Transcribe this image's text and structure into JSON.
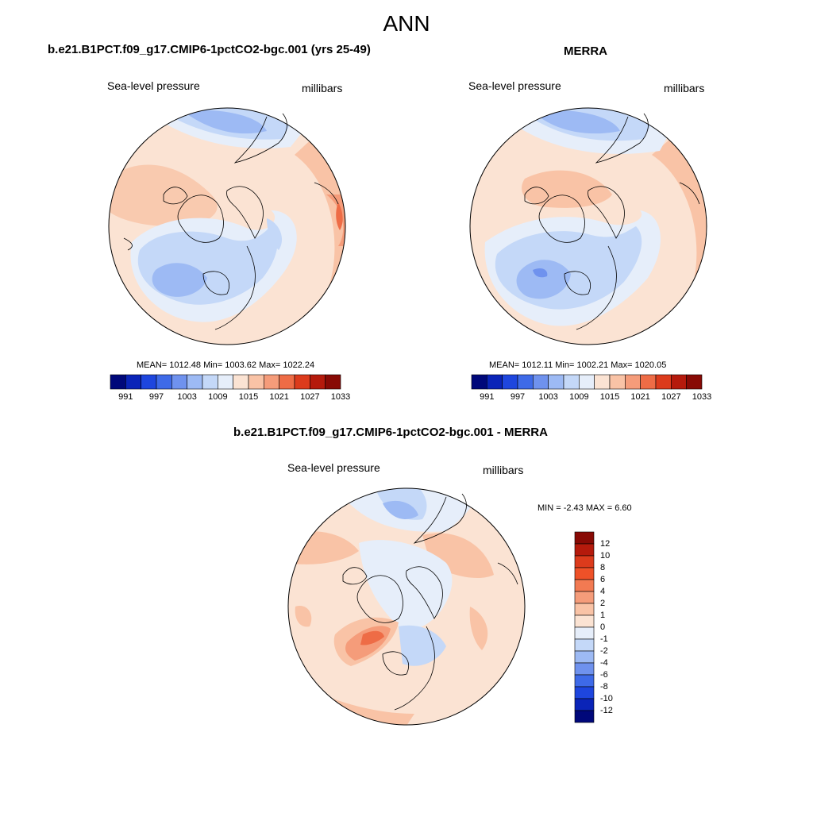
{
  "page": {
    "title": "ANN"
  },
  "panels": [
    {
      "title": "b.e21.B1PCT.f09_g17.CMIP6-1pctCO2-bgc.001 (yrs 25-49)",
      "variable": "Sea-level pressure",
      "units": "millibars",
      "stats": {
        "mean": "1012.48",
        "min": "1003.62",
        "max": "1022.24"
      },
      "stats_text": "MEAN= 1012.48  Min= 1003.62  Max= 1022.24"
    },
    {
      "title": "MERRA",
      "variable": "Sea-level pressure",
      "units": "millibars",
      "stats": {
        "mean": "1012.11",
        "min": "1002.21",
        "max": "1020.05"
      },
      "stats_text": "MEAN= 1012.11  Min= 1002.21  Max= 1020.05"
    },
    {
      "title": "b.e21.B1PCT.f09_g17.CMIP6-1pctCO2-bgc.001 - MERRA",
      "variable": "Sea-level pressure",
      "units": "millibars",
      "stats": {
        "min": "-2.43",
        "max": "6.60"
      },
      "stats_text": "MIN =  -2.43 MAX =   6.60"
    }
  ],
  "colorbar_abs": {
    "tick_labels": [
      "991",
      "997",
      "1003",
      "1009",
      "1015",
      "1021",
      "1027",
      "1033"
    ],
    "colors": [
      "#00087a",
      "#0a24b8",
      "#1e46de",
      "#3e6ae8",
      "#6f92ee",
      "#9dbaf4",
      "#c4d8f8",
      "#e6eefa",
      "#fbe3d3",
      "#f9c3a6",
      "#f59c7a",
      "#ee6c46",
      "#dc3b1c",
      "#b51a0c",
      "#880a05"
    ]
  },
  "colorbar_diff": {
    "tick_labels": [
      "12",
      "10",
      "8",
      "6",
      "4",
      "2",
      "1",
      "0",
      "-1",
      "-2",
      "-4",
      "-6",
      "-8",
      "-10",
      "-12"
    ],
    "colors": [
      "#880a05",
      "#b51a0c",
      "#dc3b1c",
      "#ee5128",
      "#f27a52",
      "#f59c7a",
      "#f9c3a6",
      "#fbe3d3",
      "#e6eefa",
      "#c4d8f8",
      "#9dbaf4",
      "#6f92ee",
      "#3e6ae8",
      "#1e46de",
      "#0a24b8",
      "#00087a"
    ]
  },
  "map_colors": {
    "ocean_warm1": "#fbe3d3",
    "ocean_warm2": "#f9c3a6",
    "ocean_warm3": "#f59c7a",
    "warm4": "#ee6c46",
    "cool1": "#e6eefa",
    "cool2": "#c4d8f8",
    "cool3": "#9dbaf4",
    "cool4": "#6f92ee"
  }
}
